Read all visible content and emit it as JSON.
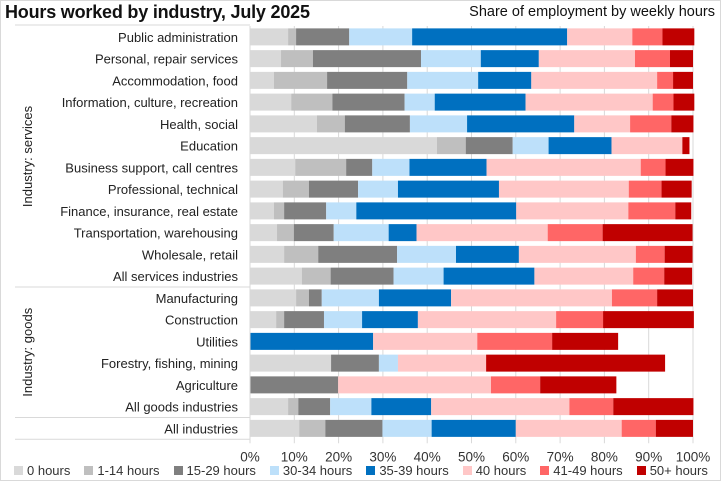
{
  "chart_data": {
    "type": "bar",
    "orientation": "horizontal",
    "stacked": true,
    "title": "Hours worked by industry, July 2025",
    "subtitle": "Share of employment by weekly hours",
    "xlabel": "",
    "ylabel": "",
    "xlim": [
      0,
      100
    ],
    "x_ticks": [
      "0%",
      "10%",
      "20%",
      "30%",
      "40%",
      "50%",
      "60%",
      "70%",
      "80%",
      "90%",
      "100%"
    ],
    "grid": true,
    "legend_position": "bottom",
    "groups": [
      {
        "label": "Industry: services",
        "categories": [
          "Public administration",
          "Personal, repair services",
          "Accommodation, food",
          "Information, culture, recreation",
          "Health, social",
          "Education",
          "Business support, call centres",
          "Professional, technical",
          "Finance, insurance, real estate",
          "Transportation, warehousing",
          "Wholesale, retail",
          "All services industries"
        ]
      },
      {
        "label": "Industry: goods",
        "categories": [
          "Manufacturing",
          "Construction",
          "Utilities",
          "Forestry, fishing, mining",
          "Agriculture",
          "All goods industries"
        ]
      },
      {
        "label": "",
        "categories": [
          "All industries"
        ]
      }
    ],
    "categories": [
      "Public administration",
      "Personal, repair services",
      "Accommodation, food",
      "Information, culture, recreation",
      "Health, social",
      "Education",
      "Business support, call centres",
      "Professional, technical",
      "Finance, insurance, real estate",
      "Transportation, warehousing",
      "Wholesale, retail",
      "All services industries",
      "Manufacturing",
      "Construction",
      "Utilities",
      "Forestry, fishing, mining",
      "Agriculture",
      "All goods industries",
      "All industries"
    ],
    "series": [
      {
        "name": "0 hours",
        "color": "#d9d9d9",
        "values": [
          8.6,
          7.0,
          5.4,
          9.3,
          15.1,
          42.2,
          10.2,
          7.4,
          5.4,
          6.1,
          7.7,
          11.7,
          10.4,
          5.9,
          0,
          18.3,
          0,
          8.6,
          11.1
        ]
      },
      {
        "name": "1-14 hours",
        "color": "#bfbfbf",
        "values": [
          1.8,
          7.2,
          12.0,
          9.3,
          6.3,
          6.5,
          11.5,
          5.9,
          2.3,
          3.8,
          7.7,
          6.5,
          2.9,
          1.8,
          0,
          0,
          0,
          2.3,
          5.9
        ]
      },
      {
        "name": "15-29 hours",
        "color": "#7f7f7f",
        "values": [
          12.0,
          24.4,
          18.1,
          16.3,
          14.7,
          10.6,
          5.9,
          11.1,
          9.5,
          9.0,
          17.8,
          14.2,
          2.9,
          9.0,
          0,
          10.8,
          19.9,
          7.2,
          12.9
        ]
      },
      {
        "name": "30-34 hours",
        "color": "#bde0fa",
        "values": [
          14.2,
          13.5,
          16.0,
          6.8,
          12.9,
          8.1,
          8.4,
          9.0,
          6.8,
          12.4,
          13.3,
          11.3,
          12.9,
          8.6,
          0,
          4.3,
          0,
          9.3,
          11.1
        ]
      },
      {
        "name": "35-39 hours",
        "color": "#0070c0",
        "values": [
          35.0,
          13.1,
          12.0,
          20.5,
          24.2,
          14.2,
          17.4,
          22.8,
          36.1,
          6.3,
          14.2,
          20.5,
          16.3,
          12.6,
          27.8,
          0,
          0,
          13.5,
          19.0
        ]
      },
      {
        "name": "40 hours",
        "color": "#ffc7c7",
        "values": [
          14.7,
          21.7,
          28.4,
          28.7,
          12.6,
          16.0,
          34.8,
          29.3,
          25.3,
          29.6,
          26.4,
          22.3,
          36.3,
          31.2,
          23.5,
          19.9,
          34.5,
          31.2,
          23.9
        ]
      },
      {
        "name": "41-49 hours",
        "color": "#ff6666",
        "values": [
          6.8,
          7.9,
          3.6,
          4.7,
          9.3,
          0,
          5.6,
          7.4,
          10.6,
          12.4,
          6.5,
          7.0,
          10.2,
          10.6,
          16.9,
          0,
          11.1,
          9.9,
          7.7
        ]
      },
      {
        "name": "50+ hours",
        "color": "#c00000",
        "values": [
          7.2,
          5.2,
          4.5,
          4.7,
          5.0,
          1.6,
          6.3,
          6.8,
          3.6,
          20.3,
          6.3,
          6.3,
          8.1,
          20.5,
          14.9,
          40.4,
          17.2,
          18.1,
          8.4
        ]
      }
    ]
  }
}
